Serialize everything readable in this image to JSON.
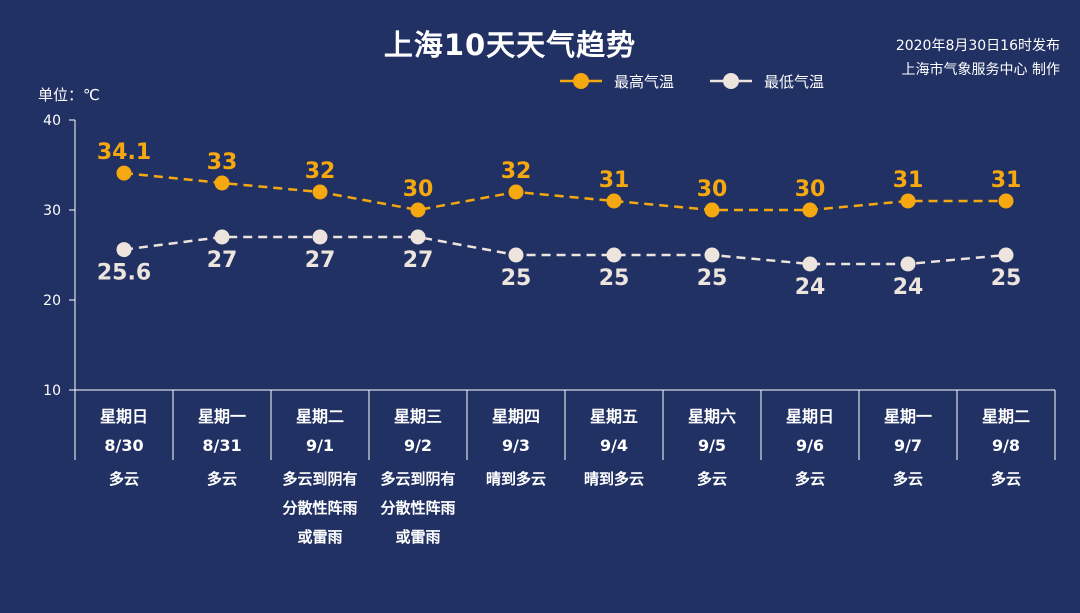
{
  "header": {
    "title": "上海10天天气趋势",
    "publish_line1": "2020年8月30日16时发布",
    "publish_line2": "上海市气象服务中心 制作",
    "unit": "单位：℃"
  },
  "colors": {
    "high": "#f5a80f",
    "low": "#ede4dd",
    "background": "#223164"
  },
  "chart_data": {
    "type": "line",
    "ylim": [
      10,
      40
    ],
    "yticks": [
      10,
      20,
      30,
      40
    ],
    "categories": [
      "8/30",
      "8/31",
      "9/1",
      "9/2",
      "9/3",
      "9/4",
      "9/5",
      "9/6",
      "9/7",
      "9/8"
    ],
    "weekdays": [
      "星期日",
      "星期一",
      "星期二",
      "星期三",
      "星期四",
      "星期五",
      "星期六",
      "星期日",
      "星期一",
      "星期二"
    ],
    "weather": [
      [
        "多云"
      ],
      [
        "多云"
      ],
      [
        "多云到阴有",
        "分散性阵雨",
        "或雷雨"
      ],
      [
        "多云到阴有",
        "分散性阵雨",
        "或雷雨"
      ],
      [
        "晴到多云"
      ],
      [
        "晴到多云"
      ],
      [
        "多云"
      ],
      [
        "多云"
      ],
      [
        "多云"
      ],
      [
        "多云"
      ]
    ],
    "series": [
      {
        "name": "最高气温",
        "values": [
          34.1,
          33,
          32,
          30,
          32,
          31,
          30,
          30,
          31,
          31
        ]
      },
      {
        "name": "最低气温",
        "values": [
          25.6,
          27,
          27,
          27,
          25,
          25,
          25,
          24,
          24,
          25
        ]
      }
    ],
    "legend": "top-center"
  }
}
